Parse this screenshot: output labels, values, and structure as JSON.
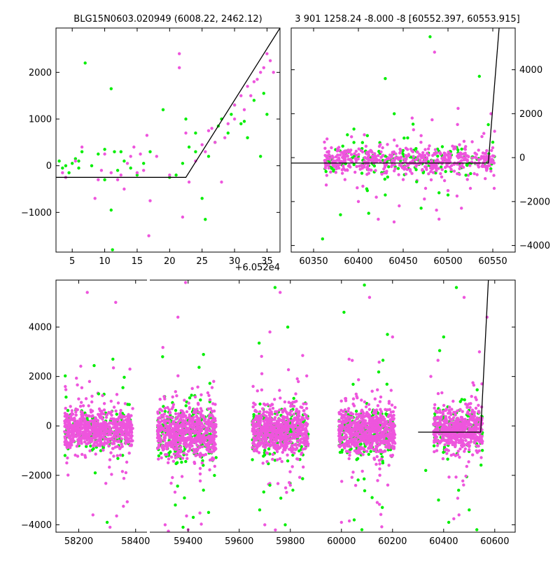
{
  "colors": {
    "green": "#00ee00",
    "magenta": "#ee55dd",
    "model_line": "#000000"
  },
  "chart_data": [
    {
      "id": "zoom",
      "type": "scatter",
      "title": "BLG15N0603.020949 (6008.22, 2462.12)",
      "xlabel": "",
      "ylabel": "",
      "offset_text": "+6.052e4",
      "xlim": [
        2.5,
        37
      ],
      "ylim": [
        -1850,
        2950
      ],
      "xticks": [
        5,
        10,
        15,
        20,
        25,
        30,
        35
      ],
      "yticks": [
        -1000,
        0,
        1000,
        2000
      ],
      "yaxis_side": "left",
      "grid": false,
      "model_line": [
        [
          2.5,
          -250
        ],
        [
          22.5,
          -250
        ],
        [
          37,
          2950
        ]
      ],
      "series": [
        {
          "color": "green",
          "points": [
            [
              3,
              100
            ],
            [
              3.5,
              -50
            ],
            [
              4,
              0
            ],
            [
              4.5,
              -150
            ],
            [
              5,
              50
            ],
            [
              5.5,
              150
            ],
            [
              6,
              -50
            ],
            [
              6.5,
              300
            ],
            [
              7,
              2200
            ],
            [
              8,
              0
            ],
            [
              9,
              250
            ],
            [
              10,
              -300
            ],
            [
              11,
              1650
            ],
            [
              11,
              -950
            ],
            [
              11.5,
              300
            ],
            [
              12,
              -100
            ],
            [
              13,
              100
            ],
            [
              14,
              -50
            ],
            [
              15,
              -200
            ],
            [
              17,
              300
            ],
            [
              19,
              1200
            ],
            [
              20,
              -250
            ],
            [
              21,
              -200
            ],
            [
              22,
              50
            ],
            [
              22.5,
              1000
            ],
            [
              23,
              400
            ],
            [
              24,
              300
            ],
            [
              25,
              -700
            ],
            [
              25.5,
              -1150
            ],
            [
              26,
              200
            ],
            [
              27,
              500
            ],
            [
              28,
              1000
            ],
            [
              29,
              700
            ],
            [
              30,
              1300
            ],
            [
              31,
              900
            ],
            [
              32,
              600
            ],
            [
              33,
              1400
            ],
            [
              34,
              200
            ],
            [
              34.5,
              1550
            ],
            [
              35,
              1100
            ],
            [
              11.2,
              -1800
            ],
            [
              4,
              -250
            ],
            [
              6,
              100
            ],
            [
              10,
              350
            ],
            [
              12.5,
              300
            ],
            [
              16,
              50
            ],
            [
              24,
              700
            ],
            [
              27.5,
              850
            ],
            [
              29.5,
              1100
            ],
            [
              31.5,
              950
            ]
          ]
        },
        {
          "color": "magenta",
          "points": [
            [
              4,
              -250
            ],
            [
              5.5,
              100
            ],
            [
              6.5,
              400
            ],
            [
              8.5,
              -700
            ],
            [
              9,
              -300
            ],
            [
              10,
              250
            ],
            [
              11,
              -150
            ],
            [
              12,
              -300
            ],
            [
              13,
              -500
            ],
            [
              14,
              200
            ],
            [
              15,
              -150
            ],
            [
              16,
              -100
            ],
            [
              16.5,
              650
            ],
            [
              17,
              -750
            ],
            [
              16.8,
              -1500
            ],
            [
              21.5,
              2400
            ],
            [
              21.5,
              2100
            ],
            [
              22,
              -1100
            ],
            [
              22.5,
              700
            ],
            [
              23,
              -350
            ],
            [
              24,
              100
            ],
            [
              25,
              450
            ],
            [
              26,
              750
            ],
            [
              27,
              500
            ],
            [
              28,
              -350
            ],
            [
              29,
              900
            ],
            [
              30,
              1000
            ],
            [
              30,
              1300
            ],
            [
              31,
              1500
            ],
            [
              31.5,
              1200
            ],
            [
              32,
              1700
            ],
            [
              33,
              1800
            ],
            [
              33.5,
              1850
            ],
            [
              34,
              2000
            ],
            [
              34.5,
              2100
            ],
            [
              35,
              2400
            ],
            [
              35.5,
              2250
            ],
            [
              36,
              2000
            ],
            [
              13.5,
              50
            ],
            [
              15.5,
              250
            ],
            [
              18,
              200
            ],
            [
              25.5,
              300
            ],
            [
              26.5,
              800
            ],
            [
              28.5,
              600
            ],
            [
              32.5,
              1500
            ],
            [
              20,
              -200
            ],
            [
              3.5,
              -150
            ],
            [
              9.5,
              -100
            ],
            [
              12.5,
              -200
            ],
            [
              14.5,
              400
            ]
          ]
        }
      ]
    },
    {
      "id": "recent",
      "type": "scatter",
      "title": "3 901 1258.24 -8.000 -8 [60552.397, 60553.915]",
      "xlabel": "",
      "ylabel": "",
      "xlim": [
        60325,
        60575
      ],
      "ylim": [
        -4300,
        5900
      ],
      "xticks": [
        60350,
        60400,
        60450,
        60500,
        60550
      ],
      "yticks": [
        -4000,
        -2000,
        0,
        2000,
        4000
      ],
      "yaxis_side": "right",
      "grid": false,
      "model_line": [
        [
          60325,
          -250
        ],
        [
          60545,
          -250
        ],
        [
          60557,
          5900
        ]
      ],
      "series": [
        {
          "color": "green",
          "points": [
            [
              60360,
              -3700
            ],
            [
              60380,
              -2600
            ],
            [
              60395,
              1300
            ],
            [
              60410,
              -1500
            ],
            [
              60430,
              3600
            ],
            [
              60440,
              2000
            ],
            [
              60455,
              900
            ],
            [
              60470,
              -2300
            ],
            [
              60480,
              5500
            ],
            [
              60490,
              -1600
            ],
            [
              60500,
              -1700
            ],
            [
              60520,
              -800
            ],
            [
              60535,
              3700
            ],
            [
              60545,
              1500
            ],
            [
              60550,
              700
            ],
            [
              60430,
              -1700
            ],
            [
              60465,
              -1100
            ],
            [
              60410,
              1000
            ]
          ]
        },
        {
          "color": "magenta",
          "points": [
            [
              60365,
              850
            ],
            [
              60385,
              -1000
            ],
            [
              60400,
              -2000
            ],
            [
              60420,
              -1800
            ],
            [
              60440,
              800
            ],
            [
              60460,
              1800
            ],
            [
              60475,
              -1400
            ],
            [
              60485,
              4800
            ],
            [
              60490,
              -2800
            ],
            [
              60500,
              -1500
            ],
            [
              60515,
              -2300
            ],
            [
              60525,
              -1400
            ],
            [
              60540,
              1100
            ],
            [
              60548,
              2000
            ],
            [
              60552,
              1200
            ],
            [
              60450,
              -1000
            ],
            [
              60470,
              1000
            ],
            [
              60405,
              -1300
            ]
          ]
        }
      ],
      "clusters": [
        {
          "x_range": [
            60362,
            60552
          ],
          "y_center": -150,
          "y_spread": 700,
          "count": 700,
          "color_mix": 0.75
        }
      ]
    },
    {
      "id": "full",
      "type": "scatter",
      "title": "",
      "xlabel": "",
      "ylabel": "",
      "broken_axis": true,
      "panels": [
        {
          "xlim": [
            58120,
            58440
          ],
          "xticks": [
            58200,
            58400
          ]
        },
        {
          "xlim": [
            59250,
            60680
          ],
          "xticks": [
            59400,
            59600,
            59800,
            60000,
            60200,
            60400,
            60600
          ]
        }
      ],
      "ylim": [
        -4300,
        5900
      ],
      "yticks": [
        -4000,
        -2000,
        0,
        2000,
        4000
      ],
      "grid": false,
      "model_line": [
        [
          60300,
          -250
        ],
        [
          60545,
          -250
        ],
        [
          60575,
          5900
        ]
      ],
      "clusters": [
        {
          "x_range": [
            58150,
            58390
          ],
          "y_center": -150,
          "y_spread": 900,
          "count": 900,
          "color_mix": 0.8
        },
        {
          "x_range": [
            59280,
            59510
          ],
          "y_center": -250,
          "y_spread": 1100,
          "count": 900,
          "color_mix": 0.7
        },
        {
          "x_range": [
            59650,
            59870
          ],
          "y_center": -200,
          "y_spread": 1000,
          "count": 900,
          "color_mix": 0.75
        },
        {
          "x_range": [
            59990,
            60210
          ],
          "y_center": -200,
          "y_spread": 1000,
          "count": 900,
          "color_mix": 0.75
        },
        {
          "x_range": [
            60360,
            60552
          ],
          "y_center": -150,
          "y_spread": 900,
          "count": 700,
          "color_mix": 0.75
        }
      ],
      "series": [
        {
          "color": "green",
          "points": [
            [
              58300,
              -3900
            ],
            [
              58270,
              1300
            ],
            [
              58320,
              2700
            ],
            [
              59380,
              -4100
            ],
            [
              59420,
              -3700
            ],
            [
              59300,
              2800
            ],
            [
              59480,
              -3500
            ],
            [
              59780,
              -4000
            ],
            [
              59790,
              4000
            ],
            [
              59740,
              5600
            ],
            [
              59680,
              -3400
            ],
            [
              60010,
              4600
            ],
            [
              60050,
              -3800
            ],
            [
              60080,
              -4200
            ],
            [
              60090,
              5700
            ],
            [
              60180,
              3700
            ],
            [
              60450,
              5600
            ],
            [
              60400,
              3600
            ],
            [
              60420,
              -3900
            ],
            [
              60330,
              -1800
            ],
            [
              60380,
              -3000
            ],
            [
              60500,
              -3400
            ],
            [
              60530,
              -4200
            ],
            [
              59460,
              -2600
            ],
            [
              59350,
              -3200
            ],
            [
              59720,
              -2400
            ],
            [
              59810,
              -2600
            ],
            [
              60120,
              -2900
            ],
            [
              60160,
              -3300
            ]
          ]
        },
        {
          "color": "magenta",
          "points": [
            [
              58230,
              5400
            ],
            [
              58250,
              -3600
            ],
            [
              58310,
              -4100
            ],
            [
              58330,
              5000
            ],
            [
              58380,
              2300
            ],
            [
              59390,
              5800
            ],
            [
              59360,
              4400
            ],
            [
              59310,
              -4000
            ],
            [
              59400,
              -4200
            ],
            [
              59500,
              1800
            ],
            [
              59700,
              -4000
            ],
            [
              59760,
              5400
            ],
            [
              59800,
              -2400
            ],
            [
              59720,
              3800
            ],
            [
              60000,
              -3900
            ],
            [
              60110,
              5200
            ],
            [
              60030,
              2700
            ],
            [
              60140,
              -3100
            ],
            [
              60200,
              3600
            ],
            [
              60480,
              5200
            ],
            [
              60460,
              -3600
            ],
            [
              60540,
              3000
            ],
            [
              60570,
              4400
            ],
            [
              60350,
              2000
            ],
            [
              60550,
              1700
            ]
          ]
        }
      ]
    }
  ]
}
